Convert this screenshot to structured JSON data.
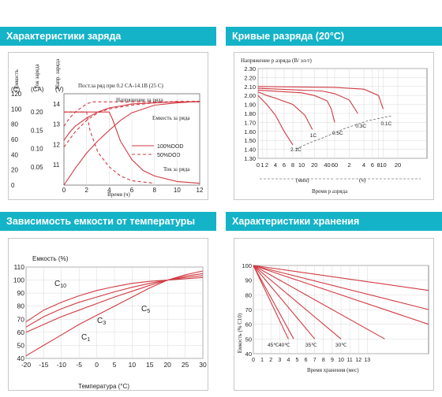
{
  "panels": {
    "charge": {
      "title": "Характеристики заряда",
      "axis_capacity": "Емкость",
      "axis_capacity_unit": "(C)",
      "axis_current": "Ток заряда",
      "axis_current_unit": "(CA)",
      "axis_voltage": "Напр. заряда",
      "axis_voltage_unit": "(V)",
      "condition": "Пост.за ряд при 0.2 CA-14.1B (25 C)",
      "label_voltage": "Напряжение за ряда",
      "label_capacity": "Емкость за ряда",
      "label_current": "Ток за ряда",
      "legend_100": "100%DOD",
      "legend_50": "50%DOD",
      "xlabel": "Время (ч)"
    },
    "discharge": {
      "title": "Кривые разряда (20°C)",
      "ylabel": "Напряжение р азряда (В/ эл-т)",
      "unit_min": "(мин)",
      "unit_h": "(ч)",
      "xlabel": "Время р азряда"
    },
    "temperature": {
      "title": "Зависимость емкости от температуры",
      "ylabel": "Емкость (%)",
      "xlabel": "Температура (°C)"
    },
    "storage": {
      "title": "Характеристики хранения",
      "ylabel": "Емкость (% C10)",
      "xlabel": "Время хранения (мес)"
    }
  },
  "chart_data": [
    {
      "type": "line",
      "title": "Характеристики заряда",
      "xlabel": "Время (ч)",
      "x_ticks": [
        "0",
        "2",
        "4",
        "6",
        "8",
        "10",
        "12"
      ],
      "xlim": [
        0,
        12
      ],
      "capacity_ticks": [
        "0",
        "20",
        "40",
        "60",
        "80",
        "100",
        "120"
      ],
      "current_ticks": [
        "0.05",
        "0.10",
        "0.15",
        "0.20"
      ],
      "voltage_ticks": [
        "11",
        "12",
        "13",
        "14"
      ],
      "series": [
        {
          "name": "100%DOD",
          "style": "solid",
          "voltage": {
            "x": [
              0,
              0.5,
              1,
              2,
              3,
              4,
              5,
              6,
              8,
              10,
              12
            ],
            "y": [
              12.2,
              12.6,
              12.9,
              13.3,
              13.6,
              13.8,
              13.9,
              14.0,
              14.05,
              14.1,
              14.1
            ]
          },
          "capacity": {
            "x": [
              0,
              1,
              2,
              3,
              4,
              5,
              6,
              8,
              10,
              12
            ],
            "y": [
              0,
              22,
              42,
              58,
              72,
              85,
              95,
              105,
              108,
              110
            ]
          },
          "current": {
            "x": [
              0,
              4,
              4.3,
              5,
              6,
              7,
              8,
              10,
              12
            ],
            "y": [
              0.2,
              0.2,
              0.18,
              0.12,
              0.07,
              0.04,
              0.025,
              0.01,
              0.005
            ]
          }
        },
        {
          "name": "50%DOD",
          "style": "dashed",
          "voltage": {
            "x": [
              0,
              0.5,
              1,
              2,
              2.5,
              12
            ],
            "y": [
              12.9,
              13.3,
              13.6,
              14.0,
              14.1,
              14.1
            ]
          },
          "capacity": {
            "x": [
              0,
              1,
              2,
              3,
              4,
              6,
              8,
              10,
              12
            ],
            "y": [
              50,
              70,
              85,
              95,
              100,
              105,
              108,
              110,
              110
            ]
          },
          "current": {
            "x": [
              0,
              2,
              2.3,
              3,
              4,
              5,
              6,
              8
            ],
            "y": [
              0.2,
              0.2,
              0.15,
              0.09,
              0.05,
              0.025,
              0.012,
              0.005
            ]
          }
        }
      ]
    },
    {
      "type": "line",
      "title": "Кривые разряда (20°C)",
      "ylabel": "Напряжение р азряда (В/ эл-т)",
      "xlabel": "Время р азряда",
      "y_ticks": [
        "1.30",
        "1.40",
        "1.50",
        "1.60",
        "1.70",
        "1.80",
        "1.90",
        "2.00",
        "2.10",
        "2.20",
        "2.30"
      ],
      "ylim": [
        1.3,
        2.3
      ],
      "x_ticks_min": [
        "0",
        "1",
        "2",
        "4",
        "6",
        "8",
        "10",
        "20",
        "40",
        "60"
      ],
      "x_ticks_h": [
        "2",
        "4",
        "6",
        "8",
        "10",
        "20"
      ],
      "series": [
        {
          "name": "2.1C",
          "x": [
            0,
            1,
            2,
            4,
            6,
            8
          ],
          "y": [
            2.0,
            1.95,
            1.9,
            1.78,
            1.6,
            1.45
          ]
        },
        {
          "name": "1C",
          "x": [
            0,
            2,
            4,
            8,
            12,
            18
          ],
          "y": [
            2.04,
            2.0,
            1.97,
            1.9,
            1.78,
            1.62
          ]
        },
        {
          "name": "0.5C",
          "x": [
            0,
            10,
            20,
            40,
            50,
            60
          ],
          "y": [
            2.06,
            2.03,
            2.0,
            1.94,
            1.85,
            1.7
          ]
        },
        {
          "name": "0.3C",
          "x": [
            0,
            30,
            60,
            120,
            180
          ],
          "y": [
            2.08,
            2.05,
            2.02,
            1.95,
            1.8
          ]
        },
        {
          "name": "0.1C",
          "x": [
            0,
            60,
            240,
            480,
            600
          ],
          "y": [
            2.1,
            2.09,
            2.07,
            2.0,
            1.85
          ]
        }
      ],
      "annotations": [
        "2.1C",
        "1C",
        "0.5C",
        "0.3C",
        "0.1C"
      ]
    },
    {
      "type": "line",
      "title": "Зависимость емкости от температуры",
      "xlabel": "Температура (°C)",
      "ylabel": "Емкость (%)",
      "x_ticks": [
        "-20",
        "-15",
        "-10",
        "-5",
        "0",
        "5",
        "10",
        "15",
        "20",
        "25",
        "30"
      ],
      "xlim": [
        -20,
        30
      ],
      "y_ticks": [
        "40",
        "50",
        "60",
        "70",
        "80",
        "90",
        "100",
        "110"
      ],
      "ylim": [
        40,
        110
      ],
      "series": [
        {
          "name": "C10",
          "x": [
            -20,
            -15,
            -10,
            -5,
            0,
            5,
            10,
            15,
            20,
            25,
            30
          ],
          "y": [
            68,
            77,
            83,
            88,
            92,
            95,
            97.5,
            99,
            100,
            101,
            102
          ]
        },
        {
          "name": "C5",
          "x": [
            -20,
            -15,
            -10,
            -5,
            0,
            5,
            10,
            15,
            20,
            25,
            30
          ],
          "y": [
            64,
            72,
            78,
            83,
            87,
            91,
            94.5,
            97.5,
            100,
            102,
            103.5
          ]
        },
        {
          "name": "C3",
          "x": [
            -20,
            -15,
            -10,
            -5,
            0,
            5,
            10,
            15,
            20,
            25,
            30
          ],
          "y": [
            60,
            66,
            72,
            77,
            82,
            87,
            91.5,
            96,
            100,
            103,
            105
          ]
        },
        {
          "name": "C1",
          "x": [
            -20,
            -15,
            -10,
            -5,
            0,
            5,
            10,
            15,
            20,
            25,
            30
          ],
          "y": [
            42,
            50,
            58,
            66,
            73,
            80,
            87,
            94,
            100,
            104,
            107
          ]
        }
      ]
    },
    {
      "type": "line",
      "title": "Характеристики хранения",
      "xlabel": "Время хранения (мес)",
      "ylabel": "Емкость (% C10)",
      "x_ticks": [
        "0",
        "1",
        "2",
        "3",
        "4",
        "5",
        "6",
        "7",
        "8",
        "9",
        "10",
        "11",
        "12",
        "13"
      ],
      "xlim": [
        0,
        20
      ],
      "y_ticks": [
        "40",
        "50",
        "60",
        "70",
        "80",
        "90",
        "100"
      ],
      "ylim": [
        40,
        100
      ],
      "series": [
        {
          "name": "45℃",
          "x": [
            0,
            4
          ],
          "y": [
            100,
            50
          ]
        },
        {
          "name": "40℃",
          "x": [
            0,
            4.6
          ],
          "y": [
            100,
            50
          ]
        },
        {
          "name": "35℃",
          "x": [
            0,
            7
          ],
          "y": [
            100,
            50
          ]
        },
        {
          "name": "30℃",
          "x": [
            0,
            10
          ],
          "y": [
            100,
            50
          ]
        },
        {
          "name": "",
          "x": [
            0,
            15
          ],
          "y": [
            100,
            50
          ]
        },
        {
          "name": "",
          "x": [
            0,
            20
          ],
          "y": [
            100,
            60
          ]
        },
        {
          "name": "",
          "x": [
            0,
            20
          ],
          "y": [
            100,
            70
          ]
        },
        {
          "name": "",
          "x": [
            0,
            20
          ],
          "y": [
            100,
            83
          ]
        }
      ]
    }
  ],
  "colors": {
    "header": "#14b3c7",
    "curve": "#d03a42",
    "grid": "#d8d8d8",
    "frame": "#c8c8c8"
  }
}
